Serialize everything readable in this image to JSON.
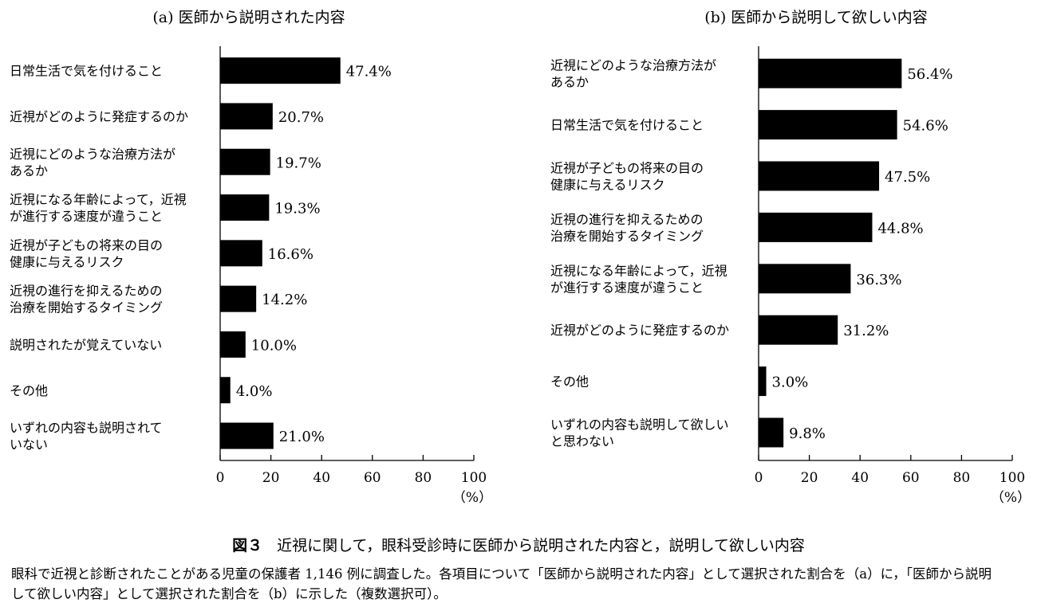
{
  "chart_data": [
    {
      "type": "bar",
      "orientation": "horizontal",
      "title": "(a) 医師から説明された内容",
      "categories": [
        [
          "日常生活で気を付けること"
        ],
        [
          "近視がどのように発症するのか"
        ],
        [
          "近視にどのような治療方法が",
          "あるか"
        ],
        [
          "近視になる年齢によって，近視",
          "が進行する速度が違うこと"
        ],
        [
          "近視が子どもの将来の目の",
          "健康に与えるリスク"
        ],
        [
          "近視の進行を抑えるための",
          "治療を開始するタイミング"
        ],
        [
          "説明されたが覚えていない"
        ],
        [
          "その他"
        ],
        [
          "いずれの内容も説明されて",
          "いない"
        ]
      ],
      "values": [
        47.4,
        20.7,
        19.7,
        19.3,
        16.6,
        14.2,
        10.0,
        4.0,
        21.0
      ],
      "value_labels": [
        "47.4%",
        "20.7%",
        "19.7%",
        "19.3%",
        "16.6%",
        "14.2%",
        "10.0%",
        "4.0%",
        "21.0%"
      ],
      "xlim": [
        0,
        100
      ],
      "xticks": [
        "0",
        "20",
        "40",
        "60",
        "80",
        "100"
      ],
      "xunit": "（%）",
      "bar_color": "#000000"
    },
    {
      "type": "bar",
      "orientation": "horizontal",
      "title": "(b) 医師から説明して欲しい内容",
      "categories": [
        [
          "近視にどのような治療方法が",
          "あるか"
        ],
        [
          "日常生活で気を付けること"
        ],
        [
          "近視が子どもの将来の目の",
          "健康に与えるリスク"
        ],
        [
          "近視の進行を抑えるための",
          "治療を開始するタイミング"
        ],
        [
          "近視になる年齢によって，近視",
          "が進行する速度が違うこと"
        ],
        [
          "近視がどのように発症するのか"
        ],
        [
          "その他"
        ],
        [
          "いずれの内容も説明して欲しい",
          "と思わない"
        ]
      ],
      "values": [
        56.4,
        54.6,
        47.5,
        44.8,
        36.3,
        31.2,
        3.0,
        9.8
      ],
      "value_labels": [
        "56.4%",
        "54.6%",
        "47.5%",
        "44.8%",
        "36.3%",
        "31.2%",
        "3.0%",
        "9.8%"
      ],
      "xlim": [
        0,
        100
      ],
      "xticks": [
        "0",
        "20",
        "40",
        "60",
        "80",
        "100"
      ],
      "xunit": "（%）",
      "bar_color": "#000000"
    }
  ],
  "caption": {
    "figure_number": "図３",
    "text": "近視に関して，眼科受診時に医師から説明された内容と，説明して欲しい内容"
  },
  "note": "眼科で近視と診断されたことがある児童の保護者 1,146 例に調査した。各項目について「医師から説明された内容」として選択された割合を（a）に，「医師から説明して欲しい内容」として選択された割合を（b）に示した（複数選択可）。"
}
